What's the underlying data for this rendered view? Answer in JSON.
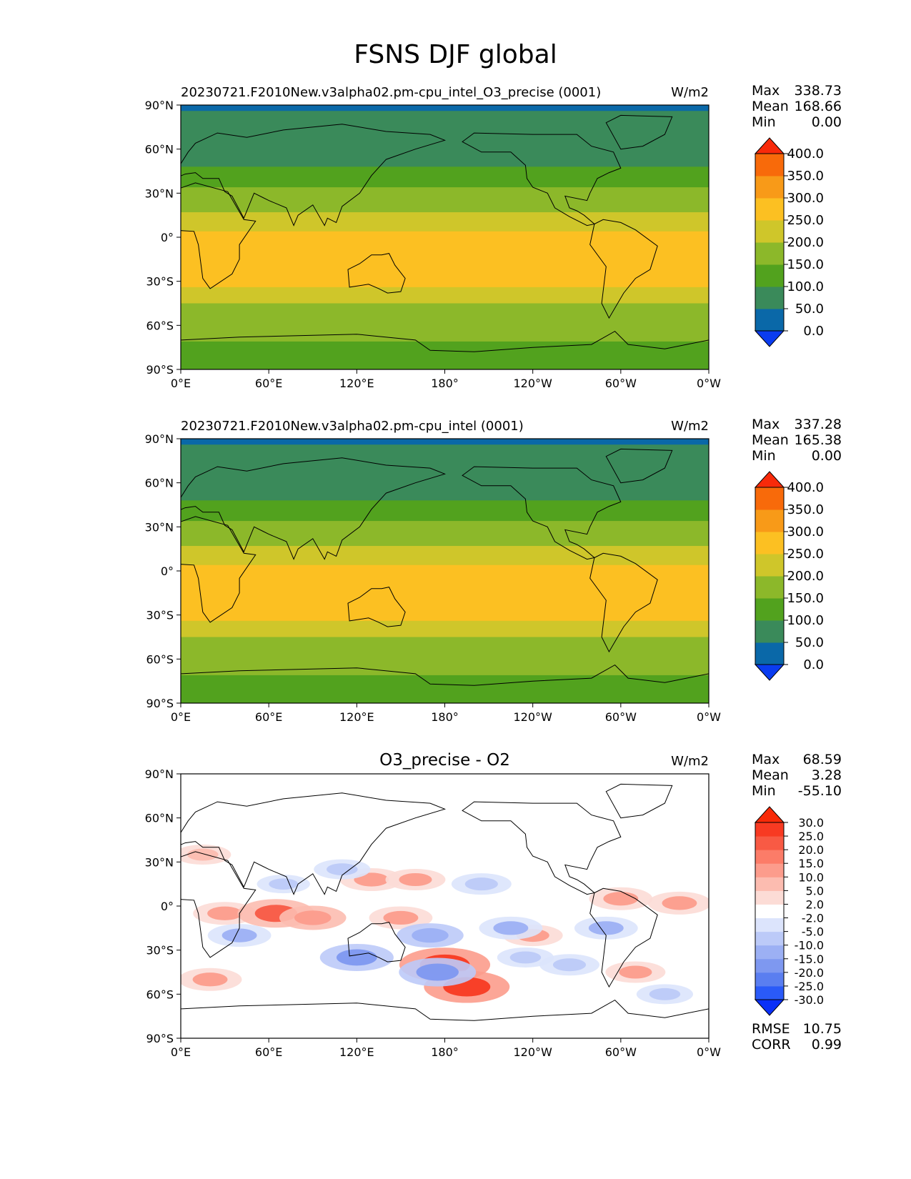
{
  "figure": {
    "title": "FSNS DJF global"
  },
  "chart_data": [
    {
      "type": "heatmap",
      "title": "20230721.F2010New.v3alpha02.pm-cpu_intel_O3_precise (0001)",
      "units": "W/m2",
      "x_ticks": [
        "0°E",
        "60°E",
        "120°E",
        "180°",
        "120°W",
        "60°W",
        "0°W"
      ],
      "y_ticks": [
        "90°N",
        "60°N",
        "30°N",
        "0°",
        "30°S",
        "60°S",
        "90°S"
      ],
      "xlim": [
        0,
        360
      ],
      "ylim": [
        -90,
        90
      ],
      "stats": {
        "max_label": "Max",
        "max": "338.73",
        "mean_label": "Mean",
        "mean": "168.66",
        "min_label": "Min",
        "min": "0.00"
      },
      "colorbar": {
        "levels": [
          "0.0",
          "50.0",
          "100.0",
          "150.0",
          "200.0",
          "250.0",
          "300.0",
          "350.0",
          "400.0"
        ],
        "colors": [
          "#0a3cf0",
          "#0a68a8",
          "#3a8a5a",
          "#52a21e",
          "#8cb82a",
          "#cfc62a",
          "#fcc022",
          "#f89a18",
          "#f86a0a",
          "#f82a0a"
        ]
      },
      "lat_profile": [
        {
          "lat": 90,
          "value": 20
        },
        {
          "lat": 87,
          "value": 20
        },
        {
          "lat": 86,
          "value": 80
        },
        {
          "lat": 49,
          "value": 80
        },
        {
          "lat": 48,
          "value": 130
        },
        {
          "lat": 35,
          "value": 130
        },
        {
          "lat": 34,
          "value": 180
        },
        {
          "lat": 18,
          "value": 180
        },
        {
          "lat": 17,
          "value": 230
        },
        {
          "lat": 5,
          "value": 230
        },
        {
          "lat": 4,
          "value": 260
        },
        {
          "lat": -33,
          "value": 260
        },
        {
          "lat": -34,
          "value": 230
        },
        {
          "lat": -44,
          "value": 230
        },
        {
          "lat": -45,
          "value": 180
        },
        {
          "lat": -70,
          "value": 180
        },
        {
          "lat": -71,
          "value": 130
        },
        {
          "lat": -90,
          "value": 130
        }
      ]
    },
    {
      "type": "heatmap",
      "title": "20230721.F2010New.v3alpha02.pm-cpu_intel (0001)",
      "units": "W/m2",
      "x_ticks": [
        "0°E",
        "60°E",
        "120°E",
        "180°",
        "120°W",
        "60°W",
        "0°W"
      ],
      "y_ticks": [
        "90°N",
        "60°N",
        "30°N",
        "0°",
        "30°S",
        "60°S",
        "90°S"
      ],
      "xlim": [
        0,
        360
      ],
      "ylim": [
        -90,
        90
      ],
      "stats": {
        "max_label": "Max",
        "max": "337.28",
        "mean_label": "Mean",
        "mean": "165.38",
        "min_label": "Min",
        "min": "0.00"
      },
      "colorbar": {
        "levels": [
          "0.0",
          "50.0",
          "100.0",
          "150.0",
          "200.0",
          "250.0",
          "300.0",
          "350.0",
          "400.0"
        ],
        "colors": [
          "#0a3cf0",
          "#0a68a8",
          "#3a8a5a",
          "#52a21e",
          "#8cb82a",
          "#cfc62a",
          "#fcc022",
          "#f89a18",
          "#f86a0a",
          "#f82a0a"
        ]
      },
      "lat_profile": [
        {
          "lat": 90,
          "value": 20
        },
        {
          "lat": 87,
          "value": 20
        },
        {
          "lat": 86,
          "value": 80
        },
        {
          "lat": 49,
          "value": 80
        },
        {
          "lat": 48,
          "value": 130
        },
        {
          "lat": 35,
          "value": 130
        },
        {
          "lat": 34,
          "value": 180
        },
        {
          "lat": 18,
          "value": 180
        },
        {
          "lat": 17,
          "value": 230
        },
        {
          "lat": 5,
          "value": 230
        },
        {
          "lat": 4,
          "value": 260
        },
        {
          "lat": -33,
          "value": 260
        },
        {
          "lat": -34,
          "value": 230
        },
        {
          "lat": -44,
          "value": 230
        },
        {
          "lat": -45,
          "value": 180
        },
        {
          "lat": -70,
          "value": 180
        },
        {
          "lat": -71,
          "value": 130
        },
        {
          "lat": -90,
          "value": 130
        }
      ]
    },
    {
      "type": "heatmap",
      "title": "O3_precise - O2",
      "units": "W/m2",
      "x_ticks": [
        "0°E",
        "60°E",
        "120°E",
        "180°",
        "120°W",
        "60°W",
        "0°W"
      ],
      "y_ticks": [
        "90°N",
        "60°N",
        "30°N",
        "0°",
        "30°S",
        "60°S",
        "90°S"
      ],
      "xlim": [
        0,
        360
      ],
      "ylim": [
        -90,
        90
      ],
      "stats": {
        "max_label": "Max",
        "max": "68.59",
        "mean_label": "Mean",
        "mean": "3.28",
        "min_label": "Min",
        "min": "-55.10"
      },
      "extra_stats": {
        "rmse_label": "RMSE",
        "rmse": "10.75",
        "corr_label": "CORR",
        "corr": "0.99"
      },
      "colorbar": {
        "levels": [
          "-30.0",
          "-25.0",
          "-20.0",
          "-15.0",
          "-10.0",
          "-5.0",
          "-2.0",
          "2.0",
          "5.0",
          "10.0",
          "15.0",
          "20.0",
          "25.0",
          "30.0"
        ],
        "colors": [
          "#0a30f8",
          "#2a5af8",
          "#5a7ef0",
          "#7e98f0",
          "#9cb0f4",
          "#bccaf8",
          "#dce4fc",
          "#ffffff",
          "#fcdcd6",
          "#fcbcb0",
          "#fc9c8c",
          "#fc7c68",
          "#f85a44",
          "#f83a22",
          "#f82a08"
        ]
      },
      "blobs": [
        {
          "lon": 30,
          "lat": -5,
          "value": 12
        },
        {
          "lon": 65,
          "lat": -5,
          "value": 20
        },
        {
          "lon": 90,
          "lat": -8,
          "value": 14
        },
        {
          "lon": 150,
          "lat": -8,
          "value": 12
        },
        {
          "lon": 180,
          "lat": -40,
          "value": 28
        },
        {
          "lon": 195,
          "lat": -55,
          "value": 25
        },
        {
          "lon": 130,
          "lat": 18,
          "value": 12
        },
        {
          "lon": 160,
          "lat": 18,
          "value": 10
        },
        {
          "lon": 300,
          "lat": 5,
          "value": 12
        },
        {
          "lon": 340,
          "lat": 2,
          "value": 12
        },
        {
          "lon": 20,
          "lat": -50,
          "value": 12
        },
        {
          "lon": 240,
          "lat": -20,
          "value": 10
        },
        {
          "lon": 310,
          "lat": -45,
          "value": 10
        },
        {
          "lon": 15,
          "lat": 35,
          "value": 8
        },
        {
          "lon": 120,
          "lat": -35,
          "value": -18
        },
        {
          "lon": 170,
          "lat": -20,
          "value": -14
        },
        {
          "lon": 225,
          "lat": -15,
          "value": -12
        },
        {
          "lon": 290,
          "lat": -15,
          "value": -12
        },
        {
          "lon": 205,
          "lat": 15,
          "value": -10
        },
        {
          "lon": 40,
          "lat": -20,
          "value": -12
        },
        {
          "lon": 110,
          "lat": 25,
          "value": -8
        },
        {
          "lon": 265,
          "lat": -40,
          "value": -10
        },
        {
          "lon": 175,
          "lat": -45,
          "value": -20
        },
        {
          "lon": 235,
          "lat": -35,
          "value": -8
        },
        {
          "lon": 70,
          "lat": 15,
          "value": -6
        },
        {
          "lon": 330,
          "lat": -60,
          "value": -8
        }
      ]
    }
  ]
}
